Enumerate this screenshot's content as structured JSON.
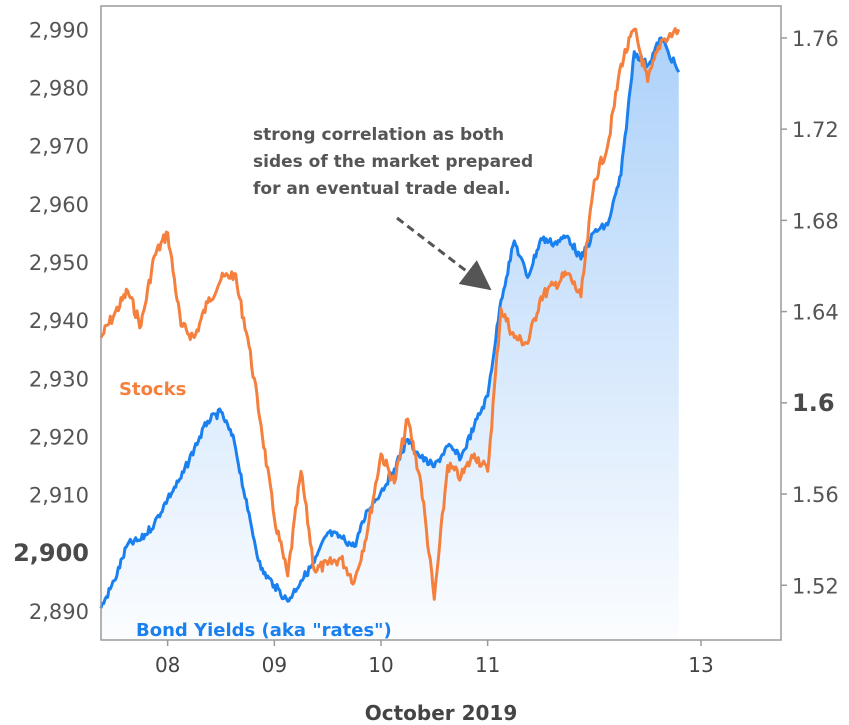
{
  "chart_data": {
    "type": "line",
    "title": "",
    "xlabel": "October 2019",
    "x_tick_labels": [
      "08",
      "09",
      "10",
      "11",
      "13"
    ],
    "x_range": [
      "2019-10-07T09:00",
      "2019-10-13T18:00"
    ],
    "y_left": {
      "label": "",
      "range": [
        2885,
        2994
      ],
      "ticks": [
        "2,890",
        "2,900",
        "2,910",
        "2,920",
        "2,930",
        "2,940",
        "2,950",
        "2,960",
        "2,970",
        "2,980",
        "2,990"
      ],
      "emphasized_tick": "2,900"
    },
    "y_right": {
      "label": "",
      "range": [
        1.496,
        1.774
      ],
      "ticks": [
        "1.52",
        "1.56",
        "1.6",
        "1.64",
        "1.68",
        "1.72",
        "1.76"
      ],
      "emphasized_tick": "1.6"
    },
    "grid": false,
    "series": [
      {
        "name": "Stocks",
        "axis": "left",
        "color": "#f5803e",
        "points": [
          [
            "2019-10-07T09:00",
            2937
          ],
          [
            "2019-10-07T12:00",
            2941
          ],
          [
            "2019-10-07T15:00",
            2945
          ],
          [
            "2019-10-07T18:00",
            2939
          ],
          [
            "2019-10-07T21:00",
            2951
          ],
          [
            "2019-10-08T00:00",
            2955
          ],
          [
            "2019-10-08T03:00",
            2939
          ],
          [
            "2019-10-08T06:00",
            2937
          ],
          [
            "2019-10-08T09:00",
            2943
          ],
          [
            "2019-10-08T12:00",
            2947
          ],
          [
            "2019-10-08T15:00",
            2948
          ],
          [
            "2019-10-08T18:00",
            2937
          ],
          [
            "2019-10-08T21:00",
            2922
          ],
          [
            "2019-10-09T00:00",
            2906
          ],
          [
            "2019-10-09T03:00",
            2896
          ],
          [
            "2019-10-09T06:00",
            2914
          ],
          [
            "2019-10-09T09:00",
            2897
          ],
          [
            "2019-10-09T12:00",
            2898
          ],
          [
            "2019-10-09T15:00",
            2899
          ],
          [
            "2019-10-09T18:00",
            2895
          ],
          [
            "2019-10-09T21:00",
            2904
          ],
          [
            "2019-10-10T00:00",
            2917
          ],
          [
            "2019-10-10T03:00",
            2912
          ],
          [
            "2019-10-10T06:00",
            2923
          ],
          [
            "2019-10-10T09:00",
            2912
          ],
          [
            "2019-10-10T12:00",
            2892
          ],
          [
            "2019-10-10T15:00",
            2915
          ],
          [
            "2019-10-10T18:00",
            2913
          ],
          [
            "2019-10-10T21:00",
            2917
          ],
          [
            "2019-10-11T00:00",
            2914
          ],
          [
            "2019-10-11T03:00",
            2942
          ],
          [
            "2019-10-11T06:00",
            2937
          ],
          [
            "2019-10-11T09:00",
            2936
          ],
          [
            "2019-10-11T12:00",
            2944
          ],
          [
            "2019-10-11T15:00",
            2946
          ],
          [
            "2019-10-11T18:00",
            2948
          ],
          [
            "2019-10-11T21:00",
            2944
          ],
          [
            "2019-10-12T00:00",
            2964
          ],
          [
            "2019-10-12T03:00",
            2970
          ],
          [
            "2019-10-12T06:00",
            2984
          ],
          [
            "2019-10-12T09:00",
            2990
          ],
          [
            "2019-10-12T12:00",
            2981
          ],
          [
            "2019-10-12T15:00",
            2988
          ],
          [
            "2019-10-12T19:00",
            2990
          ]
        ]
      },
      {
        "name": "Bond Yields (aka \"rates\")",
        "axis": "right",
        "color": "#1a80f0",
        "points": [
          [
            "2019-10-07T09:00",
            1.51
          ],
          [
            "2019-10-07T12:00",
            1.522
          ],
          [
            "2019-10-07T15:00",
            1.538
          ],
          [
            "2019-10-07T18:00",
            1.54
          ],
          [
            "2019-10-07T21:00",
            1.547
          ],
          [
            "2019-10-08T00:00",
            1.558
          ],
          [
            "2019-10-08T03:00",
            1.567
          ],
          [
            "2019-10-08T06:00",
            1.58
          ],
          [
            "2019-10-08T09:00",
            1.592
          ],
          [
            "2019-10-08T12:00",
            1.596
          ],
          [
            "2019-10-08T15:00",
            1.583
          ],
          [
            "2019-10-08T18:00",
            1.553
          ],
          [
            "2019-10-08T21:00",
            1.527
          ],
          [
            "2019-10-09T00:00",
            1.52
          ],
          [
            "2019-10-09T03:00",
            1.513
          ],
          [
            "2019-10-09T06:00",
            1.522
          ],
          [
            "2019-10-09T09:00",
            1.53
          ],
          [
            "2019-10-09T12:00",
            1.543
          ],
          [
            "2019-10-09T15:00",
            1.541
          ],
          [
            "2019-10-09T18:00",
            1.537
          ],
          [
            "2019-10-09T21:00",
            1.553
          ],
          [
            "2019-10-10T00:00",
            1.561
          ],
          [
            "2019-10-10T03:00",
            1.571
          ],
          [
            "2019-10-10T06:00",
            1.584
          ],
          [
            "2019-10-10T09:00",
            1.576
          ],
          [
            "2019-10-10T12:00",
            1.572
          ],
          [
            "2019-10-10T15:00",
            1.581
          ],
          [
            "2019-10-10T18:00",
            1.576
          ],
          [
            "2019-10-10T21:00",
            1.59
          ],
          [
            "2019-10-11T00:00",
            1.603
          ],
          [
            "2019-10-11T03:00",
            1.645
          ],
          [
            "2019-10-11T06:00",
            1.671
          ],
          [
            "2019-10-11T09:00",
            1.655
          ],
          [
            "2019-10-11T12:00",
            1.672
          ],
          [
            "2019-10-11T15:00",
            1.67
          ],
          [
            "2019-10-11T18:00",
            1.673
          ],
          [
            "2019-10-11T21:00",
            1.663
          ],
          [
            "2019-10-12T00:00",
            1.675
          ],
          [
            "2019-10-12T03:00",
            1.678
          ],
          [
            "2019-10-12T06:00",
            1.7
          ],
          [
            "2019-10-12T09:00",
            1.754
          ],
          [
            "2019-10-12T12:00",
            1.748
          ],
          [
            "2019-10-12T15:00",
            1.76
          ],
          [
            "2019-10-12T19:00",
            1.745
          ]
        ]
      }
    ],
    "annotations": [
      {
        "lines": [
          "strong correlation as both",
          "sides of the market prepared",
          "for an eventual trade deal."
        ],
        "arrow": "dashed"
      }
    ]
  }
}
